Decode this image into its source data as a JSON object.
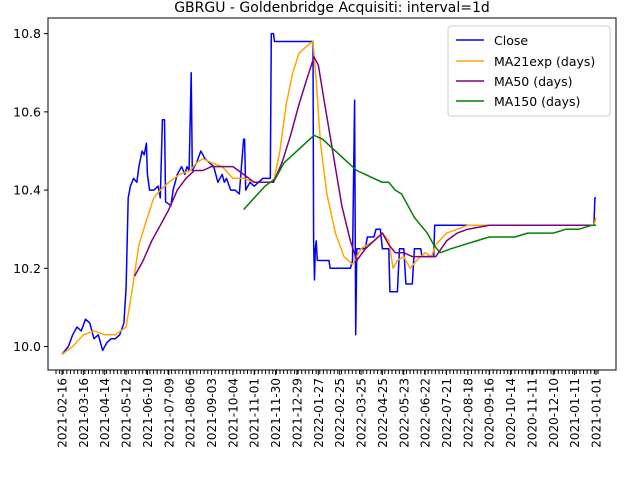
{
  "chart_data": {
    "type": "line",
    "title": "GBRGU - Goldenbridge Acquisiti: interval=1d",
    "xlabel": "",
    "ylabel": "",
    "ylim": [
      9.94,
      10.84
    ],
    "y_ticks": [
      10.0,
      10.2,
      10.4,
      10.6,
      10.8
    ],
    "y_tick_labels": [
      "10.0",
      "10.2",
      "10.4",
      "10.6",
      "10.8"
    ],
    "x_tick_labels": [
      "2021-02-16",
      "2021-03-16",
      "2021-04-14",
      "2021-05-12",
      "2021-06-10",
      "2021-07-09",
      "2021-08-06",
      "2021-09-03",
      "2021-10-04",
      "2021-11-01",
      "2021-11-30",
      "2021-12-29",
      "2022-01-27",
      "2022-02-25",
      "2022-03-25",
      "2022-04-25",
      "2022-05-23",
      "2022-06-22",
      "2022-07-21",
      "2022-08-18",
      "2020-09-16",
      "2020-10-14",
      "2020-11-11",
      "2020-12-10",
      "2021-01-11",
      "2021-01-01"
    ],
    "grid": false,
    "legend": {
      "position": "top-right",
      "entries": [
        "Close",
        "MA21exp (days)",
        "MA50 (days)",
        "MA150 (days)"
      ]
    },
    "series": [
      {
        "name": "Close",
        "color": "#0000ff",
        "points": [
          [
            0,
            9.98
          ],
          [
            0.3,
            10.0
          ],
          [
            0.5,
            10.03
          ],
          [
            0.7,
            10.05
          ],
          [
            0.9,
            10.04
          ],
          [
            1.1,
            10.07
          ],
          [
            1.3,
            10.06
          ],
          [
            1.5,
            10.02
          ],
          [
            1.7,
            10.03
          ],
          [
            1.9,
            9.99
          ],
          [
            2.1,
            10.01
          ],
          [
            2.3,
            10.02
          ],
          [
            2.5,
            10.02
          ],
          [
            2.7,
            10.03
          ],
          [
            2.9,
            10.06
          ],
          [
            3.0,
            10.15
          ],
          [
            3.1,
            10.38
          ],
          [
            3.2,
            10.41
          ],
          [
            3.35,
            10.43
          ],
          [
            3.5,
            10.42
          ],
          [
            3.6,
            10.46
          ],
          [
            3.75,
            10.5
          ],
          [
            3.85,
            10.49
          ],
          [
            3.95,
            10.52
          ],
          [
            4.0,
            10.44
          ],
          [
            4.1,
            10.4
          ],
          [
            4.3,
            10.4
          ],
          [
            4.5,
            10.41
          ],
          [
            4.6,
            10.38
          ],
          [
            4.7,
            10.58
          ],
          [
            4.8,
            10.58
          ],
          [
            4.85,
            10.37
          ],
          [
            5.1,
            10.36
          ],
          [
            5.2,
            10.4
          ],
          [
            5.4,
            10.44
          ],
          [
            5.6,
            10.46
          ],
          [
            5.75,
            10.44
          ],
          [
            5.85,
            10.46
          ],
          [
            5.95,
            10.45
          ],
          [
            6.05,
            10.7
          ],
          [
            6.1,
            10.45
          ],
          [
            6.3,
            10.47
          ],
          [
            6.5,
            10.5
          ],
          [
            6.7,
            10.48
          ],
          [
            6.9,
            10.47
          ],
          [
            7.1,
            10.46
          ],
          [
            7.3,
            10.42
          ],
          [
            7.5,
            10.44
          ],
          [
            7.6,
            10.42
          ],
          [
            7.7,
            10.43
          ],
          [
            7.9,
            10.4
          ],
          [
            8.1,
            10.4
          ],
          [
            8.3,
            10.39
          ],
          [
            8.5,
            10.53
          ],
          [
            8.55,
            10.53
          ],
          [
            8.6,
            10.4
          ],
          [
            8.8,
            10.42
          ],
          [
            9.0,
            10.41
          ],
          [
            9.2,
            10.42
          ],
          [
            9.4,
            10.43
          ],
          [
            9.6,
            10.43
          ],
          [
            9.75,
            10.43
          ],
          [
            9.8,
            10.8
          ],
          [
            9.9,
            10.8
          ],
          [
            9.95,
            10.78
          ],
          [
            10.5,
            10.78
          ],
          [
            11.0,
            10.78
          ],
          [
            11.5,
            10.78
          ],
          [
            11.75,
            10.78
          ],
          [
            11.78,
            10.27
          ],
          [
            11.82,
            10.17
          ],
          [
            11.86,
            10.25
          ],
          [
            11.9,
            10.27
          ],
          [
            11.95,
            10.22
          ],
          [
            12.2,
            10.22
          ],
          [
            12.5,
            10.22
          ],
          [
            12.55,
            10.2
          ],
          [
            13.0,
            10.2
          ],
          [
            13.5,
            10.2
          ],
          [
            13.6,
            10.22
          ],
          [
            13.7,
            10.63
          ],
          [
            13.75,
            10.03
          ],
          [
            13.8,
            10.25
          ],
          [
            14.2,
            10.25
          ],
          [
            14.3,
            10.28
          ],
          [
            14.6,
            10.28
          ],
          [
            14.7,
            10.3
          ],
          [
            14.9,
            10.3
          ],
          [
            15.0,
            10.25
          ],
          [
            15.3,
            10.25
          ],
          [
            15.35,
            10.14
          ],
          [
            15.7,
            10.14
          ],
          [
            15.8,
            10.25
          ],
          [
            16.0,
            10.25
          ],
          [
            16.1,
            10.16
          ],
          [
            16.4,
            10.16
          ],
          [
            16.5,
            10.25
          ],
          [
            16.8,
            10.25
          ],
          [
            16.85,
            10.23
          ],
          [
            17.4,
            10.23
          ],
          [
            17.45,
            10.31
          ],
          [
            18.0,
            10.31
          ],
          [
            18.5,
            10.31
          ],
          [
            19.0,
            10.31
          ],
          [
            20.0,
            10.31
          ],
          [
            21.0,
            10.31
          ],
          [
            22.0,
            10.31
          ],
          [
            23.0,
            10.31
          ],
          [
            24.0,
            10.31
          ],
          [
            24.9,
            10.31
          ],
          [
            24.95,
            10.38
          ],
          [
            25.0,
            10.38
          ]
        ]
      },
      {
        "name": "MA21exp (days)",
        "color": "#ffa500",
        "points": [
          [
            0,
            9.98
          ],
          [
            0.5,
            10.0
          ],
          [
            1.0,
            10.03
          ],
          [
            1.5,
            10.04
          ],
          [
            2.0,
            10.03
          ],
          [
            2.5,
            10.03
          ],
          [
            3.0,
            10.05
          ],
          [
            3.3,
            10.15
          ],
          [
            3.6,
            10.26
          ],
          [
            4.0,
            10.33
          ],
          [
            4.3,
            10.38
          ],
          [
            4.6,
            10.4
          ],
          [
            5.0,
            10.42
          ],
          [
            5.5,
            10.44
          ],
          [
            6.0,
            10.45
          ],
          [
            6.3,
            10.47
          ],
          [
            6.6,
            10.48
          ],
          [
            7.0,
            10.47
          ],
          [
            7.5,
            10.46
          ],
          [
            8.0,
            10.43
          ],
          [
            8.5,
            10.43
          ],
          [
            9.0,
            10.42
          ],
          [
            9.5,
            10.42
          ],
          [
            9.9,
            10.42
          ],
          [
            10.2,
            10.5
          ],
          [
            10.5,
            10.62
          ],
          [
            10.8,
            10.7
          ],
          [
            11.1,
            10.75
          ],
          [
            11.5,
            10.77
          ],
          [
            11.75,
            10.78
          ],
          [
            11.9,
            10.68
          ],
          [
            12.1,
            10.52
          ],
          [
            12.4,
            10.39
          ],
          [
            12.8,
            10.29
          ],
          [
            13.2,
            10.23
          ],
          [
            13.6,
            10.21
          ],
          [
            14.0,
            10.25
          ],
          [
            14.3,
            10.26
          ],
          [
            14.6,
            10.27
          ],
          [
            15.0,
            10.29
          ],
          [
            15.3,
            10.27
          ],
          [
            15.5,
            10.2
          ],
          [
            15.7,
            10.22
          ],
          [
            16.0,
            10.23
          ],
          [
            16.3,
            10.2
          ],
          [
            16.6,
            10.22
          ],
          [
            17.0,
            10.24
          ],
          [
            17.3,
            10.23
          ],
          [
            17.5,
            10.26
          ],
          [
            18.0,
            10.29
          ],
          [
            18.5,
            10.3
          ],
          [
            19.0,
            10.31
          ],
          [
            20.0,
            10.31
          ],
          [
            22.0,
            10.31
          ],
          [
            24.0,
            10.31
          ],
          [
            24.9,
            10.31
          ],
          [
            25.0,
            10.33
          ]
        ]
      },
      {
        "name": "MA50 (days)",
        "color": "#800080",
        "points": [
          [
            3.4,
            10.18
          ],
          [
            3.8,
            10.22
          ],
          [
            4.2,
            10.27
          ],
          [
            4.6,
            10.31
          ],
          [
            5.0,
            10.35
          ],
          [
            5.4,
            10.4
          ],
          [
            5.8,
            10.43
          ],
          [
            6.2,
            10.45
          ],
          [
            6.6,
            10.45
          ],
          [
            7.0,
            10.46
          ],
          [
            7.5,
            10.46
          ],
          [
            8.0,
            10.46
          ],
          [
            8.5,
            10.44
          ],
          [
            9.0,
            10.42
          ],
          [
            9.5,
            10.42
          ],
          [
            9.9,
            10.42
          ],
          [
            10.3,
            10.47
          ],
          [
            10.7,
            10.54
          ],
          [
            11.1,
            10.62
          ],
          [
            11.5,
            10.69
          ],
          [
            11.8,
            10.74
          ],
          [
            12.0,
            10.72
          ],
          [
            12.3,
            10.62
          ],
          [
            12.7,
            10.49
          ],
          [
            13.1,
            10.36
          ],
          [
            13.5,
            10.27
          ],
          [
            13.8,
            10.22
          ],
          [
            14.2,
            10.25
          ],
          [
            14.6,
            10.27
          ],
          [
            15.0,
            10.29
          ],
          [
            15.3,
            10.26
          ],
          [
            15.6,
            10.24
          ],
          [
            16.0,
            10.24
          ],
          [
            16.4,
            10.23
          ],
          [
            16.8,
            10.23
          ],
          [
            17.2,
            10.23
          ],
          [
            17.5,
            10.23
          ],
          [
            18.0,
            10.27
          ],
          [
            18.5,
            10.29
          ],
          [
            19.0,
            10.3
          ],
          [
            20.0,
            10.31
          ],
          [
            22.0,
            10.31
          ],
          [
            24.0,
            10.31
          ],
          [
            25.0,
            10.31
          ]
        ]
      },
      {
        "name": "MA150 (days)",
        "color": "#008000",
        "points": [
          [
            8.5,
            10.35
          ],
          [
            9.0,
            10.38
          ],
          [
            9.5,
            10.41
          ],
          [
            10.0,
            10.43
          ],
          [
            10.4,
            10.47
          ],
          [
            10.8,
            10.49
          ],
          [
            11.2,
            10.51
          ],
          [
            11.6,
            10.53
          ],
          [
            11.8,
            10.54
          ],
          [
            12.2,
            10.53
          ],
          [
            12.6,
            10.51
          ],
          [
            13.0,
            10.49
          ],
          [
            13.4,
            10.47
          ],
          [
            13.8,
            10.45
          ],
          [
            14.2,
            10.44
          ],
          [
            14.6,
            10.43
          ],
          [
            15.0,
            10.42
          ],
          [
            15.3,
            10.42
          ],
          [
            15.6,
            10.4
          ],
          [
            15.9,
            10.39
          ],
          [
            16.2,
            10.36
          ],
          [
            16.5,
            10.33
          ],
          [
            16.8,
            10.31
          ],
          [
            17.1,
            10.29
          ],
          [
            17.4,
            10.26
          ],
          [
            17.7,
            10.24
          ],
          [
            18.2,
            10.25
          ],
          [
            18.8,
            10.26
          ],
          [
            19.4,
            10.27
          ],
          [
            20.0,
            10.28
          ],
          [
            20.6,
            10.28
          ],
          [
            21.2,
            10.28
          ],
          [
            21.8,
            10.29
          ],
          [
            22.4,
            10.29
          ],
          [
            23.0,
            10.29
          ],
          [
            23.6,
            10.3
          ],
          [
            24.2,
            10.3
          ],
          [
            24.8,
            10.31
          ],
          [
            25.0,
            10.31
          ]
        ]
      }
    ]
  }
}
